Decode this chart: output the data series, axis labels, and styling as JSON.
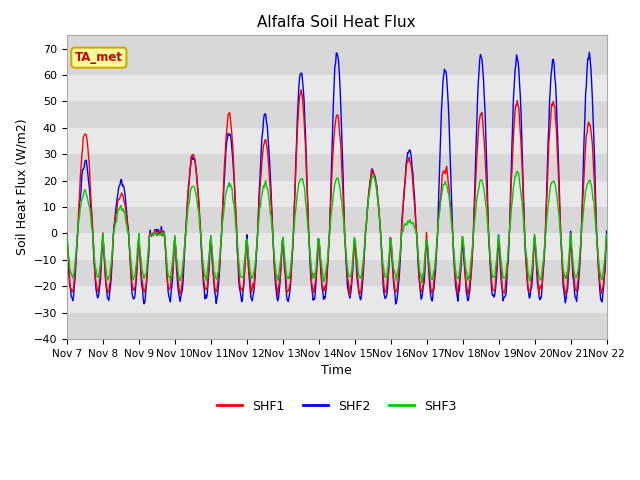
{
  "title": "Alfalfa Soil Heat Flux",
  "ylabel": "Soil Heat Flux (W/m2)",
  "xlabel": "Time",
  "ylim": [
    -40,
    75
  ],
  "xlim": [
    0,
    360
  ],
  "bg_color": "#d8d8d8",
  "band_colors": [
    "#d8d8d8",
    "#e8e8e8"
  ],
  "shf1_color": "#ff0000",
  "shf2_color": "#0000ff",
  "shf3_color": "#00cc00",
  "annotation_text": "TA_met",
  "annotation_color": "#cc0000",
  "annotation_bg": "#ffff99",
  "annotation_edge": "#ccaa00",
  "yticks": [
    -40,
    -30,
    -20,
    -10,
    0,
    10,
    20,
    30,
    40,
    50,
    60,
    70
  ],
  "xtick_labels": [
    "Nov 7",
    "Nov 8",
    "Nov 9",
    "Nov 10",
    "Nov 11",
    "Nov 12",
    "Nov 13",
    "Nov 14",
    "Nov 15",
    "Nov 16",
    "Nov 17",
    "Nov 18",
    "Nov 19",
    "Nov 20",
    "Nov 21",
    "Nov 22"
  ],
  "xtick_positions": [
    0,
    24,
    48,
    72,
    96,
    120,
    144,
    168,
    192,
    216,
    240,
    264,
    288,
    312,
    336,
    360
  ],
  "legend_labels": [
    "SHF1",
    "SHF2",
    "SHF3"
  ]
}
